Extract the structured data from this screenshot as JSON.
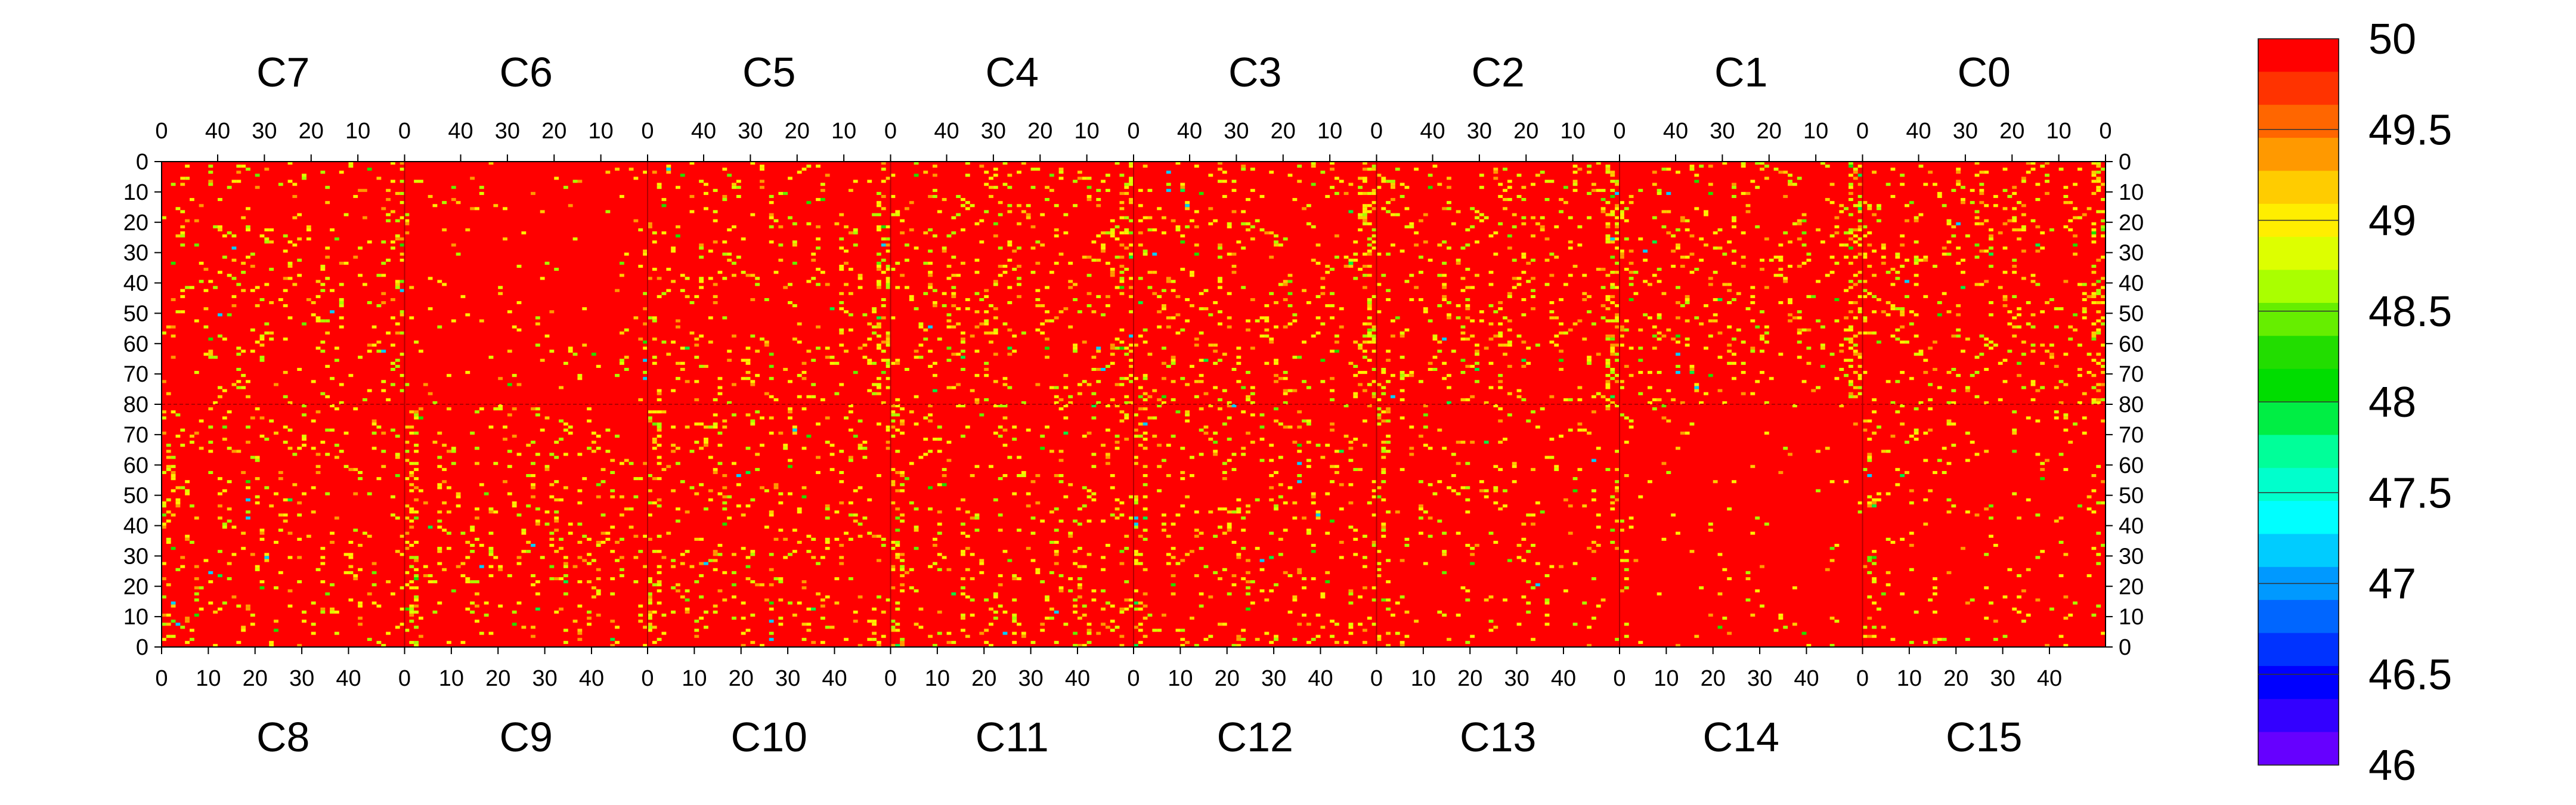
{
  "chart_data": {
    "type": "heatmap",
    "title": "",
    "xlabel": "",
    "ylabel": "",
    "layout": "8 chips per row; top row chips C7..C0 read right-to-left, bottom row chips C8..C15 read left-to-right",
    "top_chips": [
      "C7",
      "C6",
      "C5",
      "C4",
      "C3",
      "C2",
      "C1",
      "C0"
    ],
    "bottom_chips": [
      "C8",
      "C9",
      "C10",
      "C11",
      "C12",
      "C13",
      "C14",
      "C15"
    ],
    "top_axis_ticks": [
      "40",
      "30",
      "20",
      "10",
      "0"
    ],
    "bottom_axis_ticks": [
      "0",
      "10",
      "20",
      "30",
      "40"
    ],
    "left_axis_ticks": [
      "0",
      "10",
      "20",
      "30",
      "40",
      "50",
      "60",
      "70",
      "80",
      "70",
      "60",
      "50",
      "40",
      "30",
      "20",
      "10",
      "0"
    ],
    "right_axis_ticks": [
      "0",
      "10",
      "20",
      "30",
      "40",
      "50",
      "60",
      "70",
      "80",
      "70",
      "60",
      "50",
      "40",
      "30",
      "20",
      "10",
      "0"
    ],
    "columns_per_chip": 52,
    "rows_per_half": 80,
    "background_value": 50,
    "zlim": [
      46,
      50
    ],
    "colorbar": {
      "tick_labels": [
        "50",
        "49.5",
        "49",
        "48.5",
        "48",
        "47.5",
        "47",
        "46.5",
        "46"
      ],
      "tick_values": [
        50,
        49.5,
        49,
        48.5,
        48,
        47.5,
        47,
        46.5,
        46
      ],
      "colors": [
        "#ff0000",
        "#ff3300",
        "#ff6600",
        "#ff9900",
        "#ffcc00",
        "#ffee00",
        "#ddff00",
        "#aaff00",
        "#66ee00",
        "#22dd00",
        "#00dd00",
        "#00ee44",
        "#00ff99",
        "#00ffcc",
        "#00ffff",
        "#00ccff",
        "#0099ff",
        "#0066ff",
        "#0033ff",
        "#0000ff",
        "#3300ff",
        "#6600ff"
      ]
    },
    "chip_density": [
      0.08,
      0.08,
      0.08,
      0.08,
      0.08,
      0.07,
      0.02,
      0.06,
      0.06,
      0.07,
      0.07,
      0.07,
      0.07,
      0.05,
      0.015,
      0.04
    ],
    "hot_columns_note": "column 0 of each chip has elevated density of 49-49.5 values"
  }
}
